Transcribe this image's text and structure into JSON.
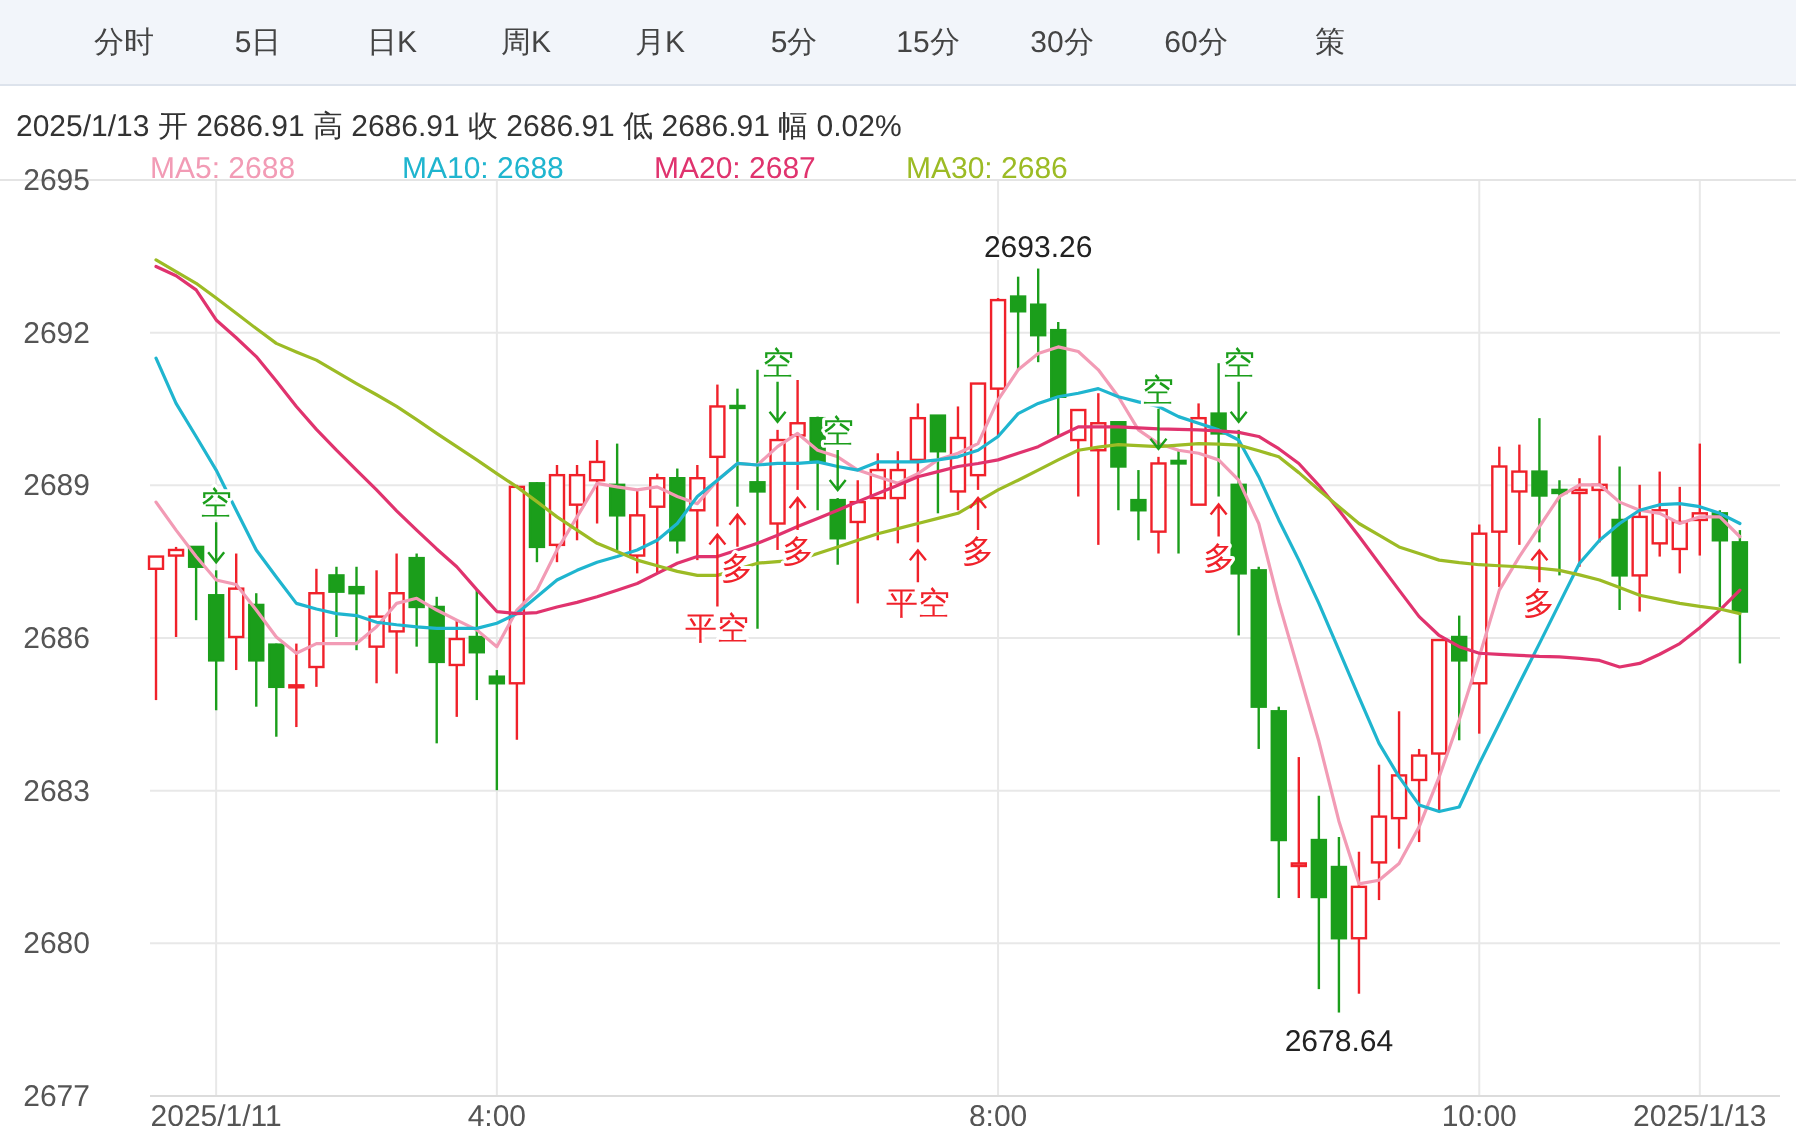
{
  "chart_data": {
    "type": "candlestick",
    "title": "2025/1/13 开 2686.91 高 2686.91 收 2686.91 低 2686.91 幅 0.02%",
    "categories": [
      null,
      null,
      null,
      "2025/1/11",
      null,
      null,
      null,
      null,
      null,
      null,
      null,
      null,
      null,
      null,
      null,
      null,
      null,
      "4:00",
      null,
      null,
      null,
      null,
      null,
      null,
      null,
      null,
      null,
      null,
      null,
      null,
      null,
      null,
      null,
      null,
      null,
      null,
      null,
      null,
      null,
      null,
      null,
      null,
      "8:00",
      null,
      null,
      null,
      null,
      null,
      null,
      null,
      null,
      null,
      null,
      null,
      null,
      null,
      null,
      null,
      null,
      null,
      null,
      null,
      null,
      null,
      null,
      null,
      "10:00",
      null,
      null,
      null,
      null,
      null,
      null,
      null,
      null,
      null,
      null,
      "2025/1/13",
      null,
      null
    ],
    "ohlc": [
      [
        2687.36,
        2687.6,
        2684.78,
        2687.6
      ],
      [
        2687.62,
        2687.79,
        2686.02,
        2687.73
      ],
      [
        2687.79,
        2687.79,
        2686.35,
        2687.4
      ],
      [
        2686.84,
        2687.33,
        2684.58,
        2685.56
      ],
      [
        2686.02,
        2687.66,
        2685.37,
        2686.97
      ],
      [
        2686.65,
        2686.88,
        2684.65,
        2685.56
      ],
      [
        2685.87,
        2685.89,
        2684.06,
        2685.04
      ],
      [
        2685.06,
        2685.89,
        2684.25,
        2685.07
      ],
      [
        2685.43,
        2687.36,
        2685.04,
        2686.88
      ],
      [
        2687.23,
        2687.4,
        2686.02,
        2686.91
      ],
      [
        2687.0,
        2687.4,
        2685.76,
        2686.88
      ],
      [
        2685.83,
        2687.33,
        2685.11,
        2686.42
      ],
      [
        2686.13,
        2687.66,
        2685.3,
        2686.88
      ],
      [
        2687.57,
        2687.66,
        2685.83,
        2686.61
      ],
      [
        2686.61,
        2686.81,
        2683.93,
        2685.53
      ],
      [
        2685.47,
        2686.35,
        2684.45,
        2685.98
      ],
      [
        2686.02,
        2686.94,
        2684.78,
        2685.72
      ],
      [
        2685.24,
        2685.37,
        2683.01,
        2685.11
      ],
      [
        2685.11,
        2689.01,
        2684.0,
        2688.97
      ],
      [
        2689.04,
        2689.06,
        2687.49,
        2687.79
      ],
      [
        2687.83,
        2689.4,
        2687.49,
        2689.2
      ],
      [
        2688.62,
        2689.4,
        2687.92,
        2689.2
      ],
      [
        2689.1,
        2689.89,
        2688.25,
        2689.46
      ],
      [
        2689.01,
        2689.82,
        2687.73,
        2688.41
      ],
      [
        2687.62,
        2688.91,
        2687.27,
        2688.41
      ],
      [
        2688.58,
        2689.23,
        2687.27,
        2689.14
      ],
      [
        2689.14,
        2689.33,
        2687.66,
        2687.92
      ],
      [
        2688.51,
        2689.4,
        2687.53,
        2689.14
      ],
      [
        2689.56,
        2690.98,
        2688.19,
        2690.55
      ],
      [
        2690.56,
        2690.9,
        2688.58,
        2690.53
      ],
      [
        2689.06,
        2691.27,
        2686.18,
        2688.88
      ],
      [
        2688.25,
        2690.09,
        2687.73,
        2689.89
      ],
      [
        2689.98,
        2691.07,
        2688.91,
        2690.22
      ],
      [
        2690.32,
        2690.35,
        2688.51,
        2689.46
      ],
      [
        2688.71,
        2688.75,
        2687.44,
        2687.96
      ],
      [
        2688.28,
        2689.1,
        2686.68,
        2688.67
      ],
      [
        2688.75,
        2689.63,
        2687.92,
        2689.3
      ],
      [
        2688.75,
        2689.67,
        2687.86,
        2689.3
      ],
      [
        2689.5,
        2690.61,
        2687.88,
        2690.32
      ],
      [
        2690.37,
        2690.37,
        2688.45,
        2689.67
      ],
      [
        2688.88,
        2690.55,
        2688.51,
        2689.93
      ],
      [
        2689.2,
        2691.0,
        2688.91,
        2691.0
      ],
      [
        2690.9,
        2692.68,
        2689.96,
        2692.64
      ],
      [
        2692.71,
        2693.1,
        2691.27,
        2692.42
      ],
      [
        2692.55,
        2693.26,
        2691.42,
        2691.95
      ],
      [
        2692.05,
        2692.21,
        2689.96,
        2690.74
      ],
      [
        2689.89,
        2690.48,
        2688.78,
        2690.48
      ],
      [
        2689.69,
        2690.81,
        2687.83,
        2690.22
      ],
      [
        2690.24,
        2690.24,
        2688.51,
        2689.37
      ],
      [
        2688.71,
        2689.3,
        2687.92,
        2688.51
      ],
      [
        2688.09,
        2689.56,
        2687.66,
        2689.43
      ],
      [
        2689.48,
        2689.69,
        2687.66,
        2689.43
      ],
      [
        2688.62,
        2690.61,
        2688.62,
        2690.32
      ],
      [
        2690.41,
        2691.4,
        2688.78,
        2690.02
      ],
      [
        2689.01,
        2690.09,
        2686.05,
        2687.27
      ],
      [
        2687.33,
        2687.4,
        2683.82,
        2684.65
      ],
      [
        2684.56,
        2684.65,
        2680.89,
        2682.03
      ],
      [
        2681.52,
        2683.66,
        2680.89,
        2681.57
      ],
      [
        2682.03,
        2682.9,
        2679.1,
        2680.91
      ],
      [
        2681.5,
        2682.09,
        2678.64,
        2680.1
      ],
      [
        2680.1,
        2681.8,
        2679.01,
        2681.11
      ],
      [
        2681.59,
        2683.51,
        2680.85,
        2682.49
      ],
      [
        2682.46,
        2684.56,
        2681.86,
        2683.3
      ],
      [
        2683.21,
        2683.82,
        2681.99,
        2683.69
      ],
      [
        2683.73,
        2685.96,
        2682.62,
        2685.96
      ],
      [
        2686.02,
        2686.44,
        2683.99,
        2685.56
      ],
      [
        2685.11,
        2688.23,
        2684.12,
        2688.05
      ],
      [
        2688.09,
        2689.76,
        2687.0,
        2689.37
      ],
      [
        2688.88,
        2689.8,
        2687.83,
        2689.27
      ],
      [
        2689.27,
        2690.32,
        2687.88,
        2688.8
      ],
      [
        2688.91,
        2689.1,
        2687.23,
        2688.85
      ],
      [
        2688.85,
        2689.14,
        2687.4,
        2688.91
      ],
      [
        2688.91,
        2689.98,
        2687.88,
        2689.01
      ],
      [
        2688.32,
        2689.37,
        2686.55,
        2687.23
      ],
      [
        2687.23,
        2689.01,
        2686.52,
        2688.38
      ],
      [
        2687.86,
        2689.27,
        2687.6,
        2688.51
      ],
      [
        2687.75,
        2688.97,
        2687.27,
        2688.28
      ],
      [
        2688.32,
        2689.82,
        2687.62,
        2688.45
      ],
      [
        2688.45,
        2688.51,
        2686.61,
        2687.92
      ],
      [
        2687.88,
        2688.12,
        2685.5,
        2686.52
      ]
    ],
    "series": [
      {
        "name": "MA5: 2688",
        "color": "#f29bb5",
        "type": "line",
        "values": [
          2688.67,
          2688.12,
          2687.6,
          2687.14,
          2687.05,
          2686.55,
          2686.02,
          2685.7,
          2685.89,
          2685.89,
          2685.89,
          2686.22,
          2686.68,
          2686.78,
          2686.55,
          2686.35,
          2686.16,
          2685.83,
          2686.55,
          2686.94,
          2687.73,
          2688.38,
          2689.04,
          2688.97,
          2688.91,
          2688.97,
          2688.78,
          2688.64,
          2689.1,
          2689.43,
          2689.4,
          2689.76,
          2690.02,
          2689.69,
          2689.56,
          2689.3,
          2689.17,
          2689.04,
          2689.23,
          2689.5,
          2689.63,
          2689.82,
          2690.68,
          2691.27,
          2691.59,
          2691.72,
          2691.63,
          2691.27,
          2690.74,
          2690.09,
          2689.82,
          2689.69,
          2689.63,
          2689.5,
          2689.1,
          2688.25,
          2686.7,
          2685.34,
          2683.97,
          2682.4,
          2681.17,
          2681.24,
          2681.57,
          2682.29,
          2683.27,
          2684.39,
          2685.63,
          2686.94,
          2687.6,
          2688.19,
          2688.78,
          2689.01,
          2689.01,
          2688.67,
          2688.51,
          2688.45,
          2688.25,
          2688.38,
          2688.38,
          2687.99
        ]
      },
      {
        "name": "MA10: 2688",
        "color": "#1fb5cf",
        "type": "line",
        "values": [
          2691.5,
          2690.61,
          2689.96,
          2689.3,
          2688.51,
          2687.73,
          2687.2,
          2686.68,
          2686.57,
          2686.48,
          2686.44,
          2686.31,
          2686.26,
          2686.22,
          2686.19,
          2686.19,
          2686.19,
          2686.29,
          2686.48,
          2686.81,
          2687.14,
          2687.33,
          2687.49,
          2687.6,
          2687.73,
          2687.92,
          2688.25,
          2688.78,
          2689.1,
          2689.43,
          2689.4,
          2689.43,
          2689.43,
          2689.46,
          2689.37,
          2689.3,
          2689.46,
          2689.46,
          2689.46,
          2689.5,
          2689.56,
          2689.69,
          2689.96,
          2690.41,
          2690.61,
          2690.74,
          2690.81,
          2690.9,
          2690.74,
          2690.64,
          2690.55,
          2690.35,
          2690.22,
          2690.09,
          2689.89,
          2689.17,
          2688.32,
          2687.53,
          2686.68,
          2685.76,
          2684.84,
          2683.93,
          2683.27,
          2682.72,
          2682.59,
          2682.68,
          2683.53,
          2684.32,
          2685.11,
          2685.89,
          2686.68,
          2687.47,
          2687.92,
          2688.25,
          2688.51,
          2688.62,
          2688.64,
          2688.58,
          2688.45,
          2688.25
        ]
      },
      {
        "name": "MA20: 2687",
        "color": "#e0336e",
        "type": "line",
        "values": [
          2693.3,
          2693.12,
          2692.84,
          2692.25,
          2691.9,
          2691.53,
          2691.05,
          2690.55,
          2690.1,
          2689.69,
          2689.3,
          2688.91,
          2688.5,
          2688.12,
          2687.75,
          2687.4,
          2686.95,
          2686.52,
          2686.48,
          2686.5,
          2686.61,
          2686.7,
          2686.81,
          2686.94,
          2687.07,
          2687.27,
          2687.47,
          2687.6,
          2687.6,
          2687.73,
          2687.86,
          2688.02,
          2688.19,
          2688.35,
          2688.51,
          2688.68,
          2688.84,
          2689.0,
          2689.17,
          2689.27,
          2689.37,
          2689.43,
          2689.5,
          2689.63,
          2689.76,
          2689.96,
          2690.15,
          2690.15,
          2690.15,
          2690.13,
          2690.11,
          2690.1,
          2690.09,
          2690.07,
          2690.04,
          2689.96,
          2689.72,
          2689.43,
          2689.0,
          2688.51,
          2688.0,
          2687.47,
          2686.94,
          2686.42,
          2686.05,
          2685.83,
          2685.7,
          2685.68,
          2685.66,
          2685.64,
          2685.63,
          2685.6,
          2685.56,
          2685.43,
          2685.5,
          2685.68,
          2685.89,
          2686.2,
          2686.55,
          2686.94
        ]
      },
      {
        "name": "MA30: 2686",
        "color": "#9cbb25",
        "type": "line",
        "values": [
          2693.43,
          2693.2,
          2692.97,
          2692.68,
          2692.38,
          2692.08,
          2691.79,
          2691.62,
          2691.46,
          2691.23,
          2691.0,
          2690.78,
          2690.55,
          2690.29,
          2690.02,
          2689.76,
          2689.5,
          2689.23,
          2688.97,
          2688.68,
          2688.38,
          2688.12,
          2687.86,
          2687.7,
          2687.53,
          2687.42,
          2687.31,
          2687.23,
          2687.23,
          2687.35,
          2687.47,
          2687.5,
          2687.53,
          2687.66,
          2687.79,
          2687.92,
          2688.05,
          2688.15,
          2688.25,
          2688.35,
          2688.45,
          2688.68,
          2688.91,
          2689.1,
          2689.3,
          2689.5,
          2689.69,
          2689.75,
          2689.8,
          2689.78,
          2689.76,
          2689.79,
          2689.82,
          2689.81,
          2689.79,
          2689.68,
          2689.56,
          2689.25,
          2688.91,
          2688.58,
          2688.25,
          2688.02,
          2687.79,
          2687.66,
          2687.53,
          2687.48,
          2687.44,
          2687.42,
          2687.4,
          2687.37,
          2687.33,
          2687.24,
          2687.14,
          2686.99,
          2686.84,
          2686.76,
          2686.68,
          2686.62,
          2686.57,
          2686.48
        ]
      }
    ],
    "ylim": [
      2677,
      2695
    ],
    "yticks": [
      2677,
      2680,
      2683,
      2686,
      2689,
      2692,
      2695
    ],
    "grid": true,
    "legend": "top left",
    "annotations": [
      "分时",
      "5日",
      "日K",
      "周K",
      "月K",
      "5分",
      "15分",
      "30分",
      "60分",
      "策",
      {
        "text": "空",
        "y": 2687.33
      },
      {
        "text": "平空",
        "y": 2688.19
      },
      {
        "text": "多",
        "y": 2688.58
      },
      {
        "text": "空",
        "y": 2690.09
      },
      {
        "text": "多",
        "y": 2688.91
      },
      {
        "text": "空",
        "y": 2688.75
      },
      {
        "text": "平空",
        "y": 2687.88
      },
      {
        "text": "多",
        "y": 2688.91
      },
      {
        "text": "空",
        "y": 2689.56
      },
      {
        "text": "多",
        "y": 2688.78
      },
      {
        "text": "空",
        "y": 2690.09
      },
      {
        "text": "多",
        "y": 2687.88
      },
      {
        "text": "2693.26",
        "y": 2693.26
      },
      {
        "text": "2678.64",
        "y": 2678.64
      }
    ]
  }
}
